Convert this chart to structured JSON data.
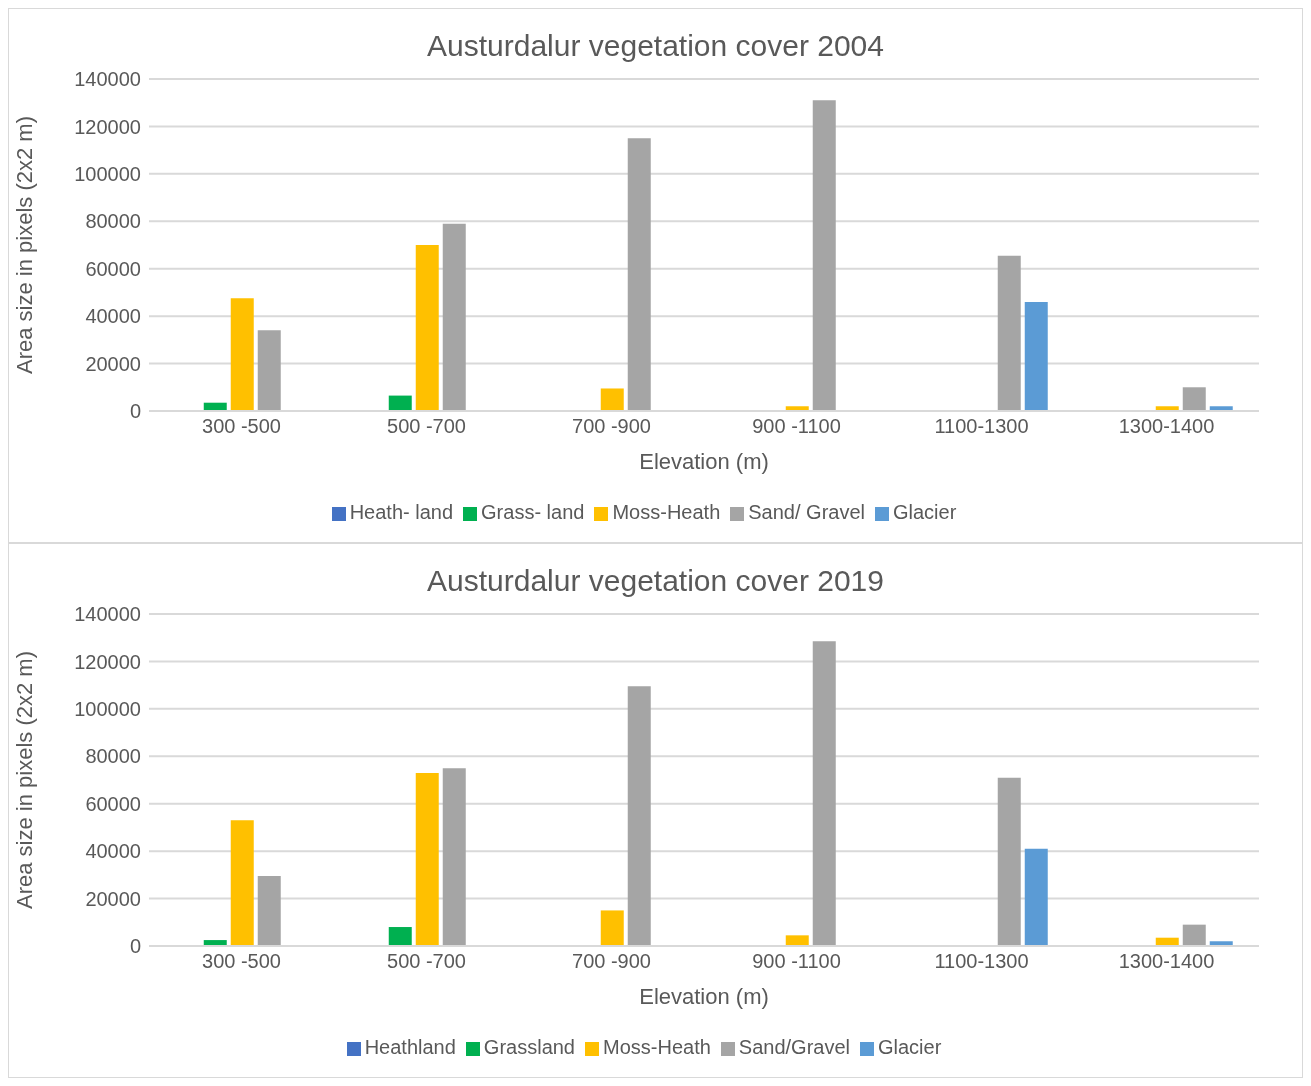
{
  "chart_data": [
    {
      "type": "bar",
      "title": "Austurdalur vegetation cover 2004",
      "xlabel": "Elevation (m)",
      "ylabel": "Area size in pixels (2x2 m)",
      "categories": [
        "300 -500",
        "500 -700",
        "700 -900",
        "900 -1100",
        "1100-1300",
        "1300-1400"
      ],
      "series": [
        {
          "name": "Heath- land",
          "color": "#4472c4",
          "values": [
            0,
            0,
            0,
            0,
            0,
            0
          ]
        },
        {
          "name": "Grass- land",
          "color": "#00b050",
          "values": [
            3500,
            6500,
            0,
            0,
            0,
            0
          ]
        },
        {
          "name": "Moss-Heath",
          "color": "#ffc000",
          "values": [
            47500,
            70000,
            9500,
            2000,
            0,
            2000
          ]
        },
        {
          "name": "Sand/ Gravel",
          "color": "#a5a5a5",
          "values": [
            34000,
            79000,
            115000,
            131000,
            65500,
            10000
          ]
        },
        {
          "name": "Glacier",
          "color": "#5b9bd5",
          "values": [
            0,
            0,
            0,
            0,
            46000,
            2000
          ]
        }
      ],
      "ylim": [
        0,
        140000
      ],
      "yticks": [
        0,
        20000,
        40000,
        60000,
        80000,
        100000,
        120000,
        140000
      ],
      "grid": "y",
      "legend": "bottom"
    },
    {
      "type": "bar",
      "title": "Austurdalur vegetation cover 2019",
      "xlabel": "Elevation (m)",
      "ylabel": "Area size in pixels (2x2 m)",
      "categories": [
        "300 -500",
        "500 -700",
        "700 -900",
        "900 -1100",
        "1100-1300",
        "1300-1400"
      ],
      "series": [
        {
          "name": "Heathland",
          "color": "#4472c4",
          "values": [
            0,
            0,
            0,
            0,
            0,
            0
          ]
        },
        {
          "name": "Grassland",
          "color": "#00b050",
          "values": [
            2500,
            8000,
            0,
            0,
            0,
            0
          ]
        },
        {
          "name": "Moss-Heath",
          "color": "#ffc000",
          "values": [
            53000,
            73000,
            15000,
            4500,
            0,
            3500
          ]
        },
        {
          "name": "Sand/Gravel",
          "color": "#a5a5a5",
          "values": [
            29500,
            75000,
            109500,
            128500,
            71000,
            9000
          ]
        },
        {
          "name": "Glacier",
          "color": "#5b9bd5",
          "values": [
            0,
            0,
            0,
            0,
            41000,
            2000
          ]
        }
      ],
      "ylim": [
        0,
        140000
      ],
      "yticks": [
        0,
        20000,
        40000,
        60000,
        80000,
        100000,
        120000,
        140000
      ],
      "grid": "y",
      "legend": "bottom"
    }
  ]
}
